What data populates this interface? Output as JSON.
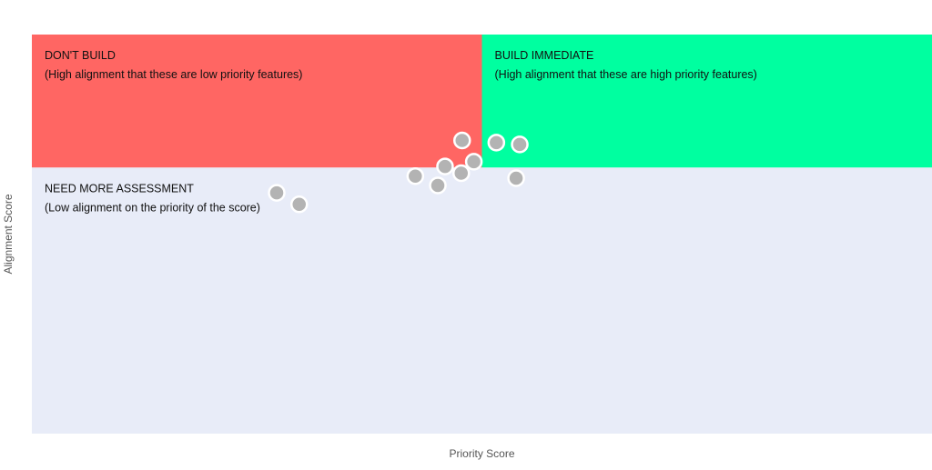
{
  "chart_data": {
    "type": "scatter",
    "xlabel": "Priority Score",
    "ylabel": "Alignment Score",
    "quadrants": [
      {
        "id": "dont-build",
        "title": "DON'T BUILD",
        "subtitle": "(High alignment that these are low priority features)",
        "color": "#ff6663"
      },
      {
        "id": "build-immediate",
        "title": "BUILD IMMEDIATE",
        "subtitle": "(High alignment that these are high priority features)",
        "color": "#00ffa0"
      },
      {
        "id": "need-more-assessment",
        "title": "NEED MORE ASSESSMENT",
        "subtitle": "(Low alignment on the priority of the score)",
        "color": "#e8ecf8"
      }
    ],
    "points": [
      {
        "x": 0.478,
        "y": 0.602
      },
      {
        "x": 0.516,
        "y": 0.594
      },
      {
        "x": 0.542,
        "y": 0.587
      },
      {
        "x": 0.491,
        "y": 0.522
      },
      {
        "x": 0.459,
        "y": 0.504
      },
      {
        "x": 0.477,
        "y": 0.479
      },
      {
        "x": 0.538,
        "y": 0.46
      },
      {
        "x": 0.426,
        "y": 0.468
      },
      {
        "x": 0.451,
        "y": 0.433
      },
      {
        "x": 0.272,
        "y": 0.405
      },
      {
        "x": 0.297,
        "y": 0.362
      }
    ],
    "point_color": "#b3b3b3",
    "xlim": [
      0,
      1
    ],
    "ylim": [
      -0.5,
      1
    ],
    "x_split": 0.5,
    "y_split": 0.5,
    "grid": false,
    "legend": "none"
  }
}
